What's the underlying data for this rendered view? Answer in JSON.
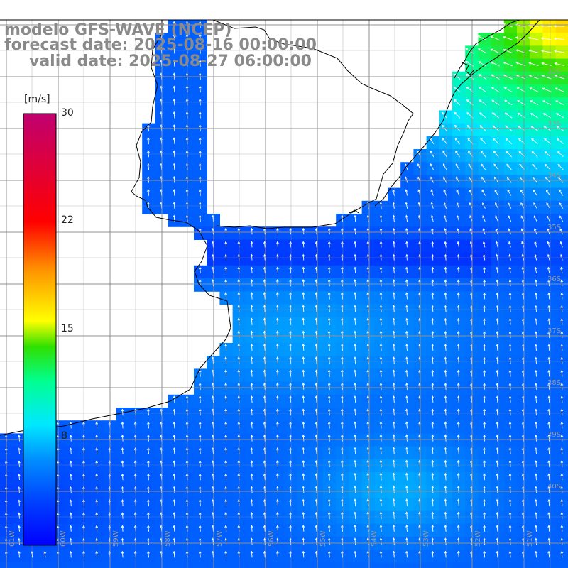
{
  "titles": {
    "model": "modelo GFS-WAVE (NCEP)",
    "forecast": "forecast date: 2025-08-16 00:00:00",
    "valid": "valid date: 2025-08-27 06:00:00"
  },
  "colorbar": {
    "unit": "[m/s]",
    "ticks": [
      "30",
      "22",
      "15",
      "8"
    ],
    "tick_values": [
      30,
      22,
      15,
      8
    ],
    "range": [
      0,
      30
    ],
    "colors": [
      "#0000ff",
      "#0050ff",
      "#00a0ff",
      "#00e0ff",
      "#00ff80",
      "#20e000",
      "#ffff00",
      "#ff8000",
      "#ff0000",
      "#c00070"
    ]
  },
  "longitude_labels": [
    "61W",
    "60W",
    "59W",
    "58W",
    "57W",
    "56W",
    "55W",
    "54W",
    "53W",
    "52W",
    "51W"
  ],
  "latitude_labels": [
    "32S",
    "33S",
    "34S",
    "35S",
    "36S",
    "37S",
    "38S",
    "39S",
    "40S"
  ],
  "colors": {
    "grid": "#909090",
    "coast": "#000000",
    "arrows": "#ffffff",
    "land": "#ffffff",
    "title": "#8a8a8a"
  }
}
